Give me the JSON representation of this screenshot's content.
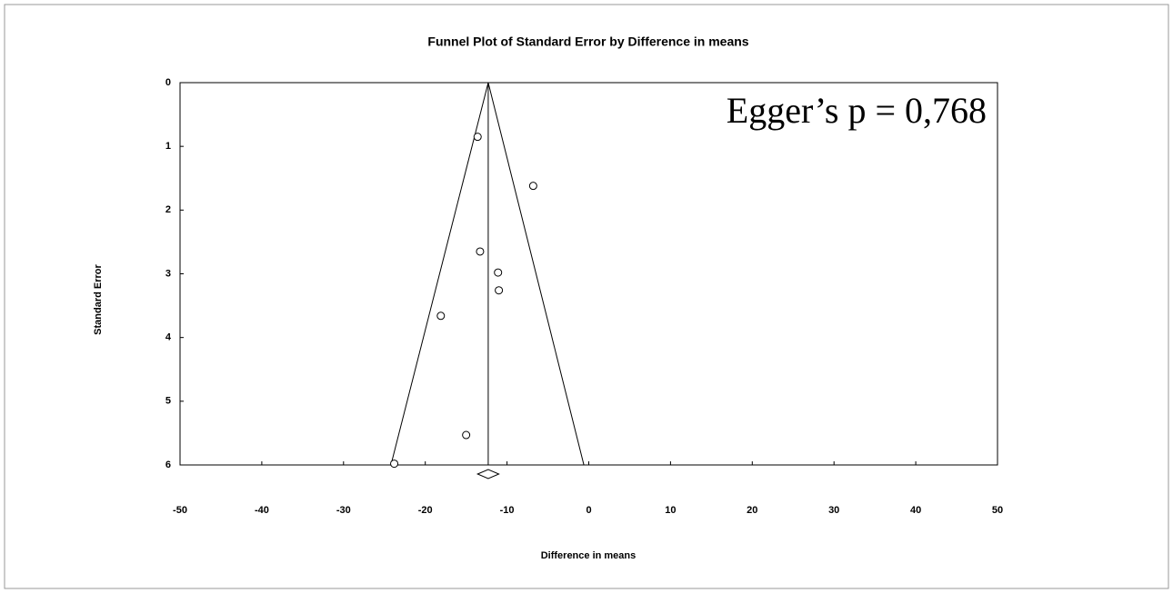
{
  "chart_data": {
    "type": "scatter",
    "title": "Funnel Plot of Standard Error by Difference in means",
    "x_label": "Difference in means",
    "y_label": "Standard Error",
    "annotation": "Egger’s p = 0,768",
    "x": [
      -13.6,
      -6.8,
      -13.3,
      -11.1,
      -11.0,
      -18.1,
      -15.0,
      -23.8
    ],
    "values": [
      0.85,
      1.62,
      2.65,
      2.98,
      3.26,
      3.66,
      5.53,
      5.98
    ],
    "xlim": [
      -50,
      50
    ],
    "xticks": [
      -50,
      -40,
      -30,
      -20,
      -10,
      0,
      10,
      20,
      30,
      40,
      50
    ],
    "ylim": [
      0,
      6
    ],
    "yticks": [
      0,
      1,
      2,
      3,
      4,
      5,
      6
    ],
    "y_reversed": true,
    "funnel": {
      "apex": -12.3,
      "left_at_bottom": -24.2,
      "right_at_bottom": -0.6
    },
    "summary": {
      "estimate": -12.3,
      "ci_low": -13.6,
      "ci_high": -11.0
    },
    "color": "#000000"
  }
}
